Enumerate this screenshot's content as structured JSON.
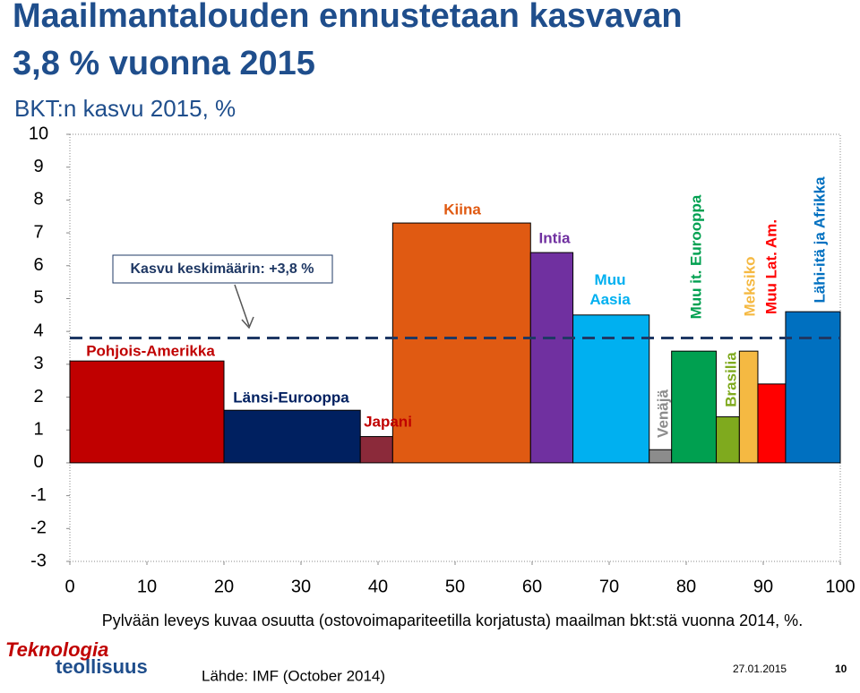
{
  "chart_data": {
    "type": "variable-width-bar",
    "title": "Maailmantalouden ennustetaan kasvavan 3,8 % vuonna 2015",
    "subtitle": "BKT:n kasvu 2015, %",
    "x_label": "Pylvään leveys kuvaa osuutta (ostovoimapariteetilla korjatusta) maailman bkt:stä vuonna 2014, %.",
    "categories": [
      "Pohjois-Amerikka",
      "Länsi-Eurooppa",
      "Japani",
      "Kiina",
      "Intia",
      "Muu Aasia",
      "Venäjä",
      "Muu it. Eurooppa",
      "Brasilia",
      "Meksiko",
      "Muu Lat. Am.",
      "Lähi-itä ja Afrikka"
    ],
    "bins": [
      0,
      20,
      37.7,
      41.9,
      59.8,
      65.3,
      75.2,
      78.1,
      83.9,
      86.9,
      89.3,
      92.9,
      100
    ],
    "values": [
      3.1,
      1.6,
      0.8,
      7.3,
      6.4,
      4.5,
      0.4,
      3.4,
      1.4,
      3.4,
      2.4,
      4.6
    ],
    "colors": [
      "#c00000",
      "#002060",
      "#8b2a3a",
      "#e05a12",
      "#7030a0",
      "#00b0f0",
      "#8c8c8c",
      "#00a050",
      "#7faa1e",
      "#f5b942",
      "#ff0000",
      "#0070c0"
    ],
    "average": 3.8,
    "average_label": "Kasvu keskimäärin: +3,8 %",
    "xlim": [
      0,
      100
    ],
    "xticks": [
      0,
      10,
      20,
      30,
      40,
      50,
      60,
      70,
      80,
      90,
      100
    ],
    "ylim": [
      -3,
      10
    ],
    "yticks": [
      -3,
      -2,
      -1,
      0,
      1,
      2,
      3,
      4,
      5,
      6,
      7,
      8,
      9,
      10
    ],
    "grid": false
  },
  "footer": {
    "logo_line1": "Teknologia",
    "logo_line2": "teollisuus",
    "source": "Lähde: IMF (October 2014)",
    "date": "27.01.2015",
    "page": "10"
  }
}
